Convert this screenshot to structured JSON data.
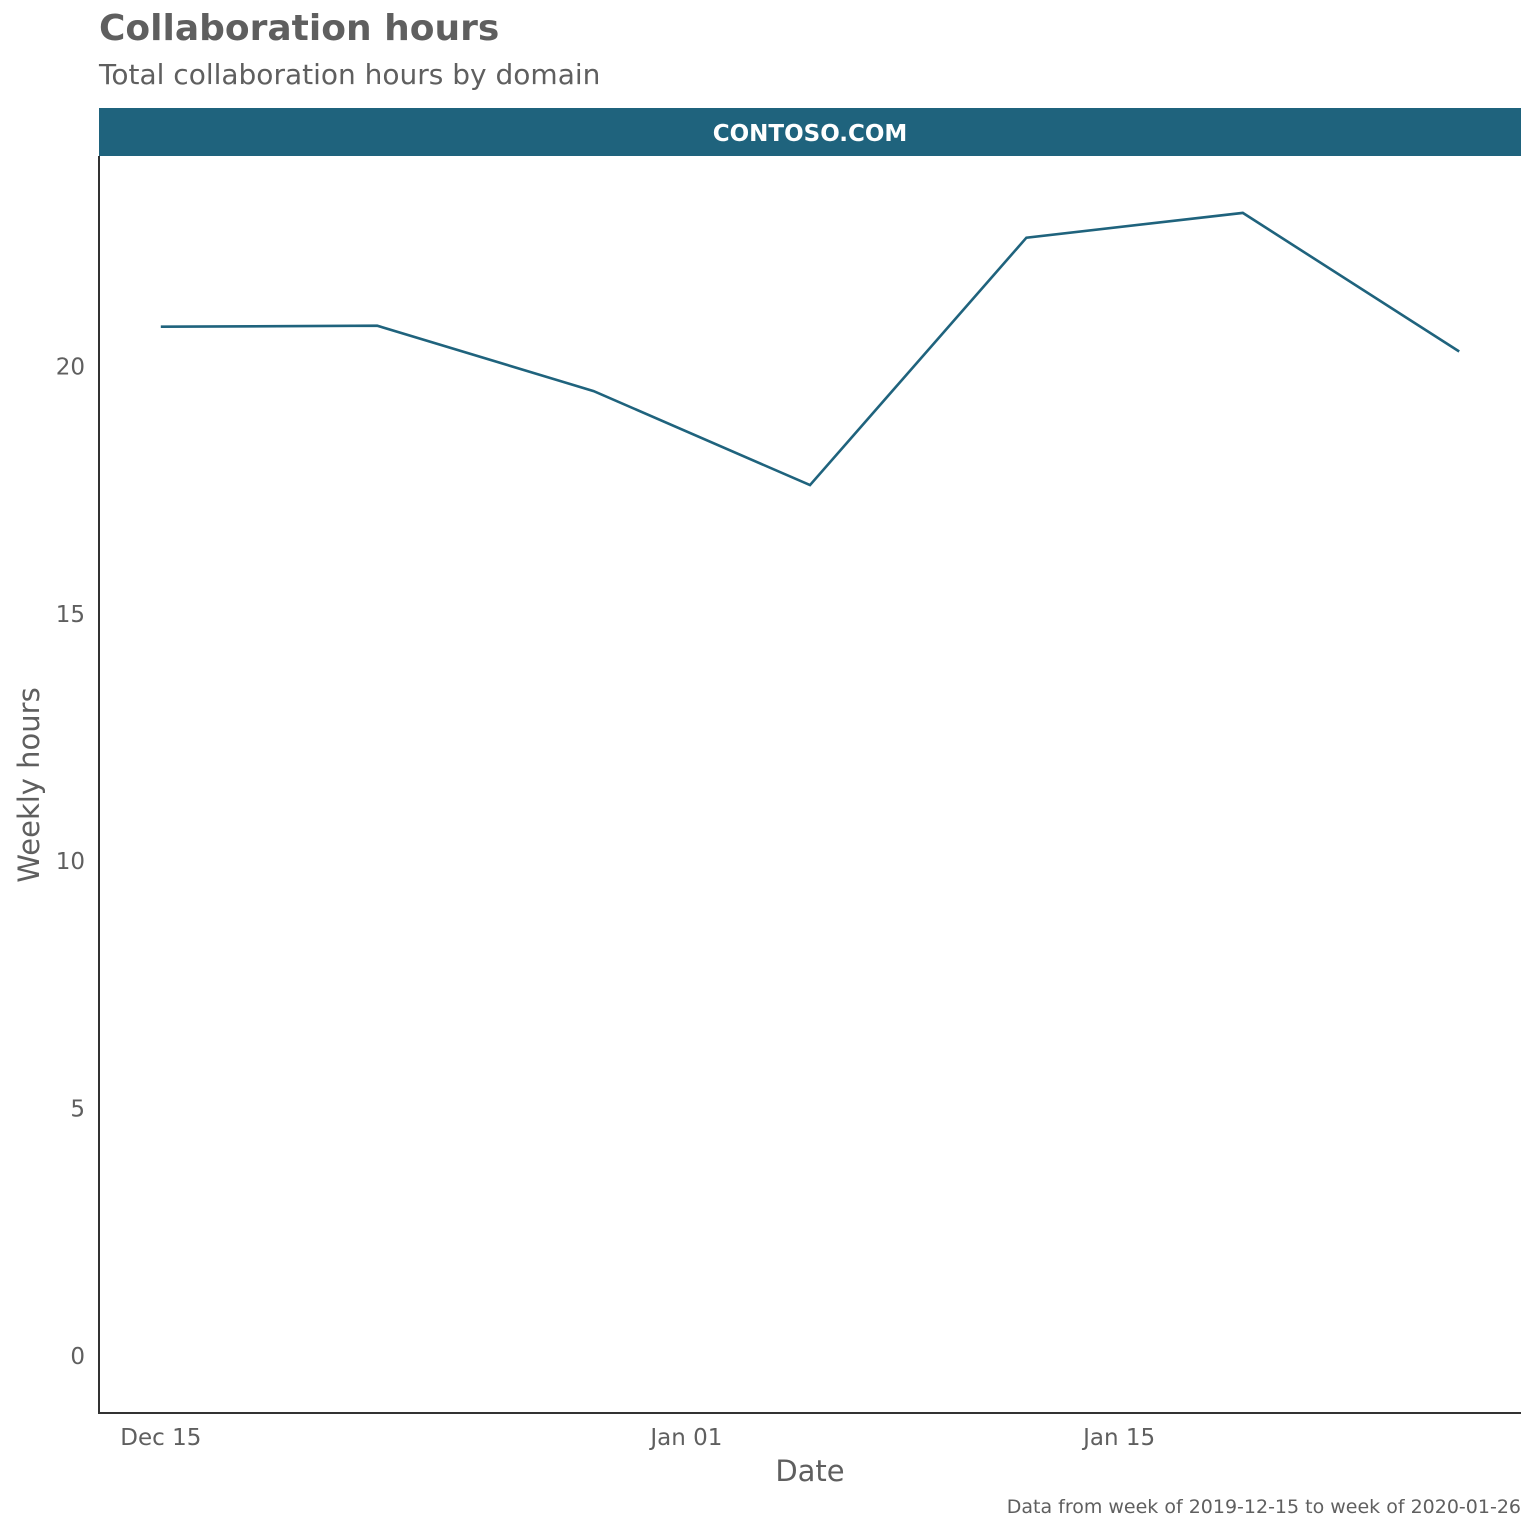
{
  "title": "Collaboration hours",
  "subtitle": "Total collaboration hours by domain",
  "caption": "Data from week of 2019-12-15 to week of 2020-01-26",
  "colors": {
    "line": "#1f637d",
    "strip": "#1f637d",
    "strip_text": "#ffffff",
    "text": "#5f5f5f",
    "axis": "#333333"
  },
  "chart_data": {
    "type": "line",
    "facet_label": "CONTOSO.COM",
    "xlabel": "Date",
    "ylabel": "Weekly hours",
    "x_ticks": [
      {
        "date": "2019-12-15",
        "label": "Dec 15"
      },
      {
        "date": "2020-01-01",
        "label": "Jan 01"
      },
      {
        "date": "2020-01-15",
        "label": "Jan 15"
      }
    ],
    "y_ticks": [
      0,
      5,
      10,
      15,
      20
    ],
    "xlim": [
      "2019-12-13",
      "2020-01-28"
    ],
    "ylim": [
      -1.15,
      24.25
    ],
    "grid": false,
    "series": [
      {
        "x": [
          "2019-12-15",
          "2019-12-22",
          "2019-12-29",
          "2020-01-05",
          "2020-01-12",
          "2020-01-19",
          "2020-01-26"
        ],
        "values": [
          20.8,
          20.82,
          19.5,
          17.6,
          22.6,
          23.1,
          20.3
        ]
      }
    ]
  }
}
